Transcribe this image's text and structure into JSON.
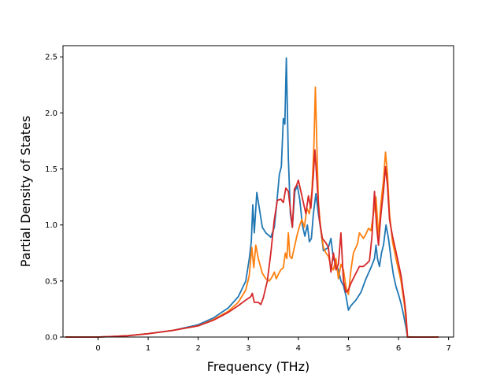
{
  "chart_data": {
    "type": "line",
    "title": "",
    "xlabel": "Frequency (THz)",
    "ylabel": "Partial Density of States",
    "xlim": [
      -0.7,
      7.1
    ],
    "ylim": [
      0.0,
      2.6
    ],
    "grid": false,
    "x_ticks": [
      0,
      1,
      2,
      3,
      4,
      5,
      6,
      7
    ],
    "y_ticks": [
      0.0,
      0.5,
      1.0,
      1.5,
      2.0,
      2.5
    ],
    "x_tick_labels": [
      "0",
      "1",
      "2",
      "3",
      "4",
      "5",
      "6",
      "7"
    ],
    "y_tick_labels": [
      "0.0",
      "0.5",
      "1.0",
      "1.5",
      "2.0",
      "2.5"
    ],
    "series": [
      {
        "color": "#1f77b4",
        "points": [
          [
            -0.65,
            0.0
          ],
          [
            0.0,
            0.0
          ],
          [
            0.3,
            0.005
          ],
          [
            0.6,
            0.012
          ],
          [
            1.0,
            0.03
          ],
          [
            1.5,
            0.06
          ],
          [
            2.0,
            0.11
          ],
          [
            2.3,
            0.17
          ],
          [
            2.6,
            0.26
          ],
          [
            2.8,
            0.36
          ],
          [
            2.95,
            0.5
          ],
          [
            3.02,
            0.7
          ],
          [
            3.06,
            0.85
          ],
          [
            3.09,
            1.18
          ],
          [
            3.12,
            0.93
          ],
          [
            3.17,
            1.29
          ],
          [
            3.22,
            1.15
          ],
          [
            3.28,
            0.98
          ],
          [
            3.35,
            0.93
          ],
          [
            3.45,
            0.89
          ],
          [
            3.52,
            0.98
          ],
          [
            3.57,
            1.2
          ],
          [
            3.62,
            1.45
          ],
          [
            3.66,
            1.52
          ],
          [
            3.7,
            1.95
          ],
          [
            3.73,
            1.9
          ],
          [
            3.76,
            2.49
          ],
          [
            3.8,
            1.6
          ],
          [
            3.84,
            1.1
          ],
          [
            3.88,
            0.98
          ],
          [
            3.93,
            1.3
          ],
          [
            3.98,
            1.35
          ],
          [
            4.03,
            1.22
          ],
          [
            4.08,
            1.0
          ],
          [
            4.13,
            0.9
          ],
          [
            4.18,
            1.0
          ],
          [
            4.22,
            0.85
          ],
          [
            4.26,
            0.88
          ],
          [
            4.3,
            1.1
          ],
          [
            4.35,
            1.28
          ],
          [
            4.4,
            1.1
          ],
          [
            4.45,
            0.95
          ],
          [
            4.5,
            0.77
          ],
          [
            4.6,
            0.8
          ],
          [
            4.65,
            0.88
          ],
          [
            4.7,
            0.7
          ],
          [
            4.75,
            0.65
          ],
          [
            4.8,
            0.6
          ],
          [
            4.85,
            0.5
          ],
          [
            4.9,
            0.46
          ],
          [
            4.95,
            0.37
          ],
          [
            5.0,
            0.24
          ],
          [
            5.05,
            0.28
          ],
          [
            5.15,
            0.33
          ],
          [
            5.25,
            0.4
          ],
          [
            5.35,
            0.52
          ],
          [
            5.45,
            0.62
          ],
          [
            5.52,
            0.7
          ],
          [
            5.55,
            0.82
          ],
          [
            5.58,
            0.7
          ],
          [
            5.62,
            0.63
          ],
          [
            5.66,
            0.75
          ],
          [
            5.7,
            0.82
          ],
          [
            5.75,
            1.0
          ],
          [
            5.8,
            0.88
          ],
          [
            5.85,
            0.7
          ],
          [
            5.9,
            0.55
          ],
          [
            5.95,
            0.45
          ],
          [
            6.0,
            0.38
          ],
          [
            6.05,
            0.3
          ],
          [
            6.1,
            0.2
          ],
          [
            6.15,
            0.08
          ],
          [
            6.18,
            0.0
          ],
          [
            6.8,
            0.0
          ]
        ]
      },
      {
        "color": "#ff7f0e",
        "points": [
          [
            -0.65,
            0.0
          ],
          [
            0.0,
            0.0
          ],
          [
            0.3,
            0.005
          ],
          [
            0.6,
            0.012
          ],
          [
            1.0,
            0.03
          ],
          [
            1.5,
            0.06
          ],
          [
            2.0,
            0.1
          ],
          [
            2.3,
            0.155
          ],
          [
            2.6,
            0.23
          ],
          [
            2.8,
            0.31
          ],
          [
            2.95,
            0.42
          ],
          [
            3.02,
            0.55
          ],
          [
            3.07,
            0.8
          ],
          [
            3.11,
            0.62
          ],
          [
            3.15,
            0.82
          ],
          [
            3.2,
            0.7
          ],
          [
            3.28,
            0.57
          ],
          [
            3.35,
            0.52
          ],
          [
            3.42,
            0.5
          ],
          [
            3.48,
            0.54
          ],
          [
            3.52,
            0.58
          ],
          [
            3.56,
            0.52
          ],
          [
            3.6,
            0.56
          ],
          [
            3.65,
            0.6
          ],
          [
            3.7,
            0.62
          ],
          [
            3.74,
            0.75
          ],
          [
            3.77,
            0.7
          ],
          [
            3.8,
            0.93
          ],
          [
            3.83,
            0.72
          ],
          [
            3.87,
            0.7
          ],
          [
            3.92,
            0.8
          ],
          [
            3.98,
            0.92
          ],
          [
            4.03,
            1.0
          ],
          [
            4.07,
            1.05
          ],
          [
            4.12,
            0.98
          ],
          [
            4.17,
            1.15
          ],
          [
            4.22,
            1.1
          ],
          [
            4.27,
            1.3
          ],
          [
            4.31,
            1.7
          ],
          [
            4.34,
            2.23
          ],
          [
            4.37,
            1.7
          ],
          [
            4.4,
            1.2
          ],
          [
            4.45,
            0.95
          ],
          [
            4.5,
            0.8
          ],
          [
            4.55,
            0.75
          ],
          [
            4.6,
            0.72
          ],
          [
            4.65,
            0.63
          ],
          [
            4.7,
            0.6
          ],
          [
            4.75,
            0.7
          ],
          [
            4.8,
            0.52
          ],
          [
            4.85,
            0.65
          ],
          [
            4.9,
            0.6
          ],
          [
            4.95,
            0.45
          ],
          [
            5.0,
            0.38
          ],
          [
            5.05,
            0.6
          ],
          [
            5.1,
            0.75
          ],
          [
            5.18,
            0.83
          ],
          [
            5.22,
            0.93
          ],
          [
            5.3,
            0.88
          ],
          [
            5.35,
            0.92
          ],
          [
            5.4,
            0.97
          ],
          [
            5.45,
            0.95
          ],
          [
            5.5,
            1.1
          ],
          [
            5.55,
            1.25
          ],
          [
            5.6,
            0.9
          ],
          [
            5.65,
            1.2
          ],
          [
            5.7,
            1.4
          ],
          [
            5.74,
            1.65
          ],
          [
            5.78,
            1.45
          ],
          [
            5.82,
            1.1
          ],
          [
            5.88,
            0.85
          ],
          [
            5.95,
            0.7
          ],
          [
            6.05,
            0.5
          ],
          [
            6.12,
            0.28
          ],
          [
            6.17,
            0.05
          ],
          [
            6.18,
            0.0
          ],
          [
            6.8,
            0.0
          ]
        ]
      },
      {
        "color": "#d62728",
        "points": [
          [
            -0.65,
            0.0
          ],
          [
            0.0,
            0.0
          ],
          [
            0.3,
            0.005
          ],
          [
            0.6,
            0.012
          ],
          [
            1.0,
            0.03
          ],
          [
            1.5,
            0.06
          ],
          [
            2.0,
            0.1
          ],
          [
            2.3,
            0.15
          ],
          [
            2.6,
            0.22
          ],
          [
            2.8,
            0.28
          ],
          [
            2.95,
            0.33
          ],
          [
            3.05,
            0.36
          ],
          [
            3.08,
            0.39
          ],
          [
            3.12,
            0.31
          ],
          [
            3.2,
            0.31
          ],
          [
            3.25,
            0.29
          ],
          [
            3.3,
            0.35
          ],
          [
            3.38,
            0.5
          ],
          [
            3.45,
            0.75
          ],
          [
            3.52,
            1.05
          ],
          [
            3.58,
            1.22
          ],
          [
            3.65,
            1.23
          ],
          [
            3.7,
            1.2
          ],
          [
            3.75,
            1.33
          ],
          [
            3.8,
            1.3
          ],
          [
            3.85,
            1.1
          ],
          [
            3.88,
            0.98
          ],
          [
            3.92,
            1.32
          ],
          [
            3.96,
            1.35
          ],
          [
            4.0,
            1.4
          ],
          [
            4.05,
            1.3
          ],
          [
            4.1,
            1.2
          ],
          [
            4.15,
            1.1
          ],
          [
            4.2,
            1.26
          ],
          [
            4.25,
            1.15
          ],
          [
            4.3,
            1.45
          ],
          [
            4.33,
            1.67
          ],
          [
            4.37,
            1.4
          ],
          [
            4.42,
            1.05
          ],
          [
            4.48,
            0.88
          ],
          [
            4.55,
            0.84
          ],
          [
            4.6,
            0.8
          ],
          [
            4.65,
            0.58
          ],
          [
            4.7,
            0.75
          ],
          [
            4.75,
            0.6
          ],
          [
            4.8,
            0.65
          ],
          [
            4.85,
            0.93
          ],
          [
            4.9,
            0.5
          ],
          [
            4.95,
            0.4
          ],
          [
            5.0,
            0.42
          ],
          [
            5.05,
            0.48
          ],
          [
            5.15,
            0.57
          ],
          [
            5.22,
            0.63
          ],
          [
            5.3,
            0.63
          ],
          [
            5.35,
            0.65
          ],
          [
            5.42,
            0.68
          ],
          [
            5.47,
            0.9
          ],
          [
            5.52,
            1.3
          ],
          [
            5.56,
            1.0
          ],
          [
            5.6,
            0.82
          ],
          [
            5.65,
            1.1
          ],
          [
            5.7,
            1.3
          ],
          [
            5.74,
            1.52
          ],
          [
            5.78,
            1.35
          ],
          [
            5.82,
            1.05
          ],
          [
            5.88,
            0.9
          ],
          [
            5.95,
            0.76
          ],
          [
            6.05,
            0.55
          ],
          [
            6.12,
            0.32
          ],
          [
            6.15,
            0.2
          ],
          [
            6.18,
            0.0
          ],
          [
            6.8,
            0.0
          ]
        ]
      }
    ]
  }
}
